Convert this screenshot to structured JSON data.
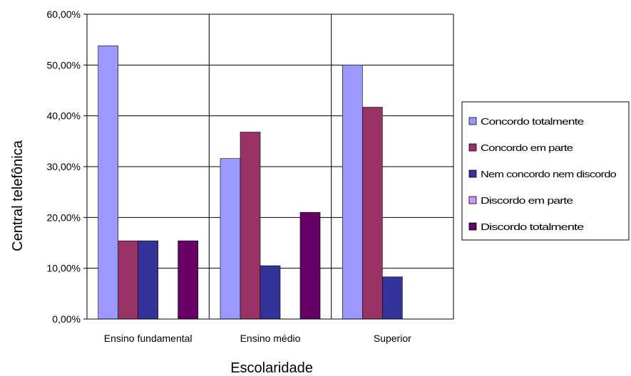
{
  "chart_data": {
    "type": "bar",
    "title": "",
    "xlabel": "Escolaridade",
    "ylabel": "Central telefônica",
    "ylim": [
      0,
      60
    ],
    "yticks": [
      "0,00%",
      "10,00%",
      "20,00%",
      "30,00%",
      "40,00%",
      "50,00%",
      "60,00%"
    ],
    "categories": [
      "Ensino fundamental",
      "Ensino médio",
      "Superior"
    ],
    "series": [
      {
        "name": "Concordo totalmente",
        "color": "#9999ff",
        "values": [
          53.8,
          31.6,
          50.0
        ]
      },
      {
        "name": "Concordo em parte",
        "color": "#993366",
        "values": [
          15.4,
          36.8,
          41.7
        ]
      },
      {
        "name": "Nem concordo nem discordo",
        "color": "#333399",
        "values": [
          15.4,
          10.5,
          8.3
        ]
      },
      {
        "name": "Discordo em parte",
        "color": "#cc99ff",
        "values": [
          0,
          0,
          0
        ]
      },
      {
        "name": "Discordo totalmente",
        "color": "#660066",
        "values": [
          15.4,
          21.0,
          0
        ]
      }
    ],
    "legend": "right",
    "grid": true
  }
}
